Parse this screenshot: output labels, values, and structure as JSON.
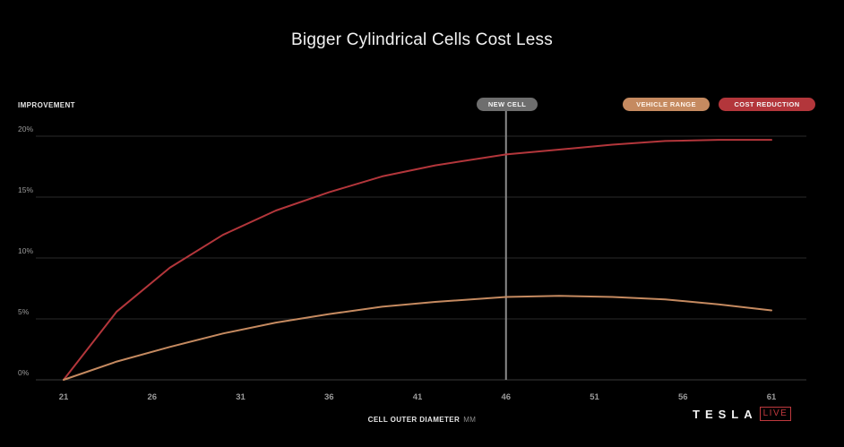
{
  "title": "Bigger Cylindrical Cells Cost Less",
  "colors": {
    "cost_reduction": "#b3363b",
    "vehicle_range": "#c58a60",
    "new_cell": "#8a8a8a",
    "grid": "#2a2a2a"
  },
  "legend": {
    "new_cell": "NEW CELL",
    "vehicle_range": "VEHICLE RANGE",
    "cost_reduction": "COST REDUCTION"
  },
  "branding": {
    "wordmark": "TESLA",
    "badge": "LIVE"
  },
  "chart_data": {
    "type": "line",
    "title": "Bigger Cylindrical Cells Cost Less",
    "ylabel": "IMPROVEMENT",
    "xlabel": "CELL OUTER DIAMETER",
    "xunit": "MM",
    "xlim": [
      21,
      61
    ],
    "ylim": [
      0,
      20
    ],
    "xticks": [
      21,
      26,
      31,
      36,
      41,
      46,
      51,
      56,
      61
    ],
    "yticks": [
      0,
      5,
      10,
      15,
      20
    ],
    "ytick_labels": [
      "0%",
      "5%",
      "10%",
      "15%",
      "20%"
    ],
    "grid": true,
    "marker": {
      "label": "NEW CELL",
      "x": 46
    },
    "series": [
      {
        "name": "COST REDUCTION",
        "color": "#b3363b",
        "x": [
          21,
          24,
          27,
          30,
          33,
          36,
          39,
          42,
          46,
          49,
          52,
          55,
          58,
          61
        ],
        "values": [
          0,
          5.6,
          9.2,
          11.9,
          13.9,
          15.4,
          16.7,
          17.6,
          18.5,
          18.9,
          19.3,
          19.6,
          19.7,
          19.7
        ]
      },
      {
        "name": "VEHICLE RANGE",
        "color": "#c58a60",
        "x": [
          21,
          24,
          27,
          30,
          33,
          36,
          39,
          42,
          46,
          49,
          52,
          55,
          58,
          61
        ],
        "values": [
          0,
          1.5,
          2.7,
          3.8,
          4.7,
          5.4,
          6.0,
          6.4,
          6.8,
          6.9,
          6.8,
          6.6,
          6.2,
          5.7
        ]
      }
    ]
  }
}
